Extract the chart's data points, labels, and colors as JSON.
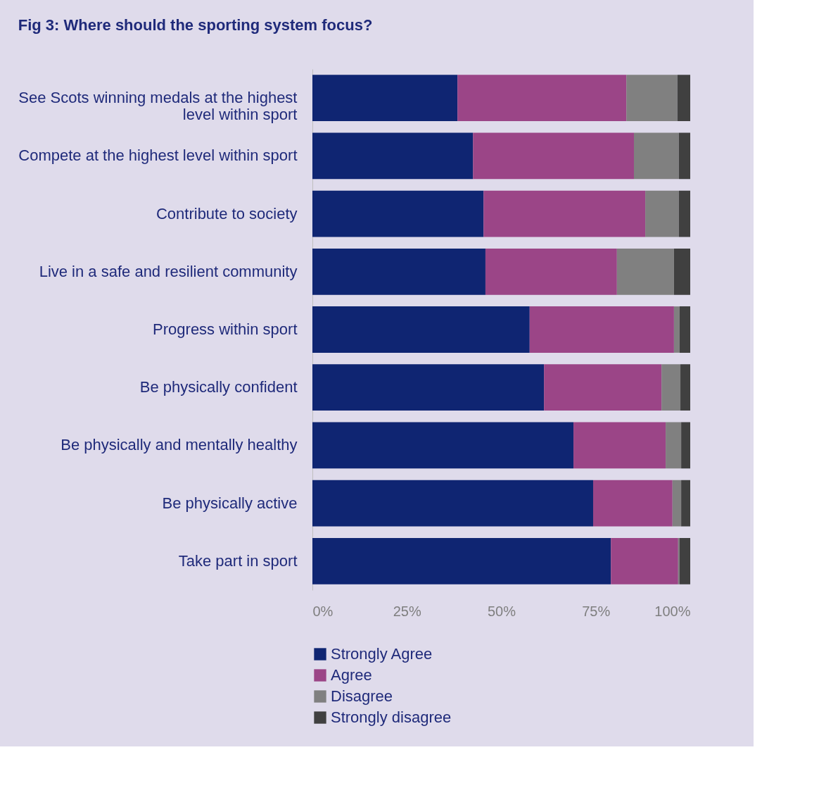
{
  "chart_data": {
    "type": "bar",
    "orientation": "horizontal",
    "stacked": true,
    "title": "Fig 3: Where should the sporting system focus?",
    "categories": [
      "See Scots winning medals at the highest level within sport",
      "Compete at the highest level within sport",
      "Contribute to society",
      "Live in a safe and resilient community",
      "Progress within sport",
      "Be physically confident",
      "Be physically and mentally healthy",
      "Be physically  active",
      "Take part in sport"
    ],
    "series": [
      {
        "name": "Strongly Agree",
        "color": "#0f2572",
        "values": [
          38.4,
          42.5,
          45.3,
          45.8,
          57.5,
          61.3,
          69.1,
          74.3,
          79.0
        ]
      },
      {
        "name": "Agree",
        "color": "#9b4587",
        "values": [
          44.7,
          42.6,
          42.8,
          34.8,
          38.2,
          31.1,
          24.4,
          21.0,
          17.8
        ]
      },
      {
        "name": "Disagree",
        "color": "#808080",
        "values": [
          13.5,
          11.9,
          8.9,
          15.1,
          1.5,
          5.0,
          4.1,
          2.3,
          0.4
        ]
      },
      {
        "name": "Strongly disagree",
        "color": "#404040",
        "values": [
          3.4,
          3.0,
          3.0,
          4.3,
          2.8,
          2.6,
          2.4,
          2.4,
          2.8
        ]
      }
    ],
    "xlim": [
      0,
      100
    ],
    "xticks": [
      {
        "value": 0,
        "label": "0%"
      },
      {
        "value": 25,
        "label": "25%"
      },
      {
        "value": 50,
        "label": "50%"
      },
      {
        "value": 75,
        "label": "75%"
      },
      {
        "value": 100,
        "label": "100%"
      }
    ],
    "grid": false,
    "legend": "bottom"
  }
}
